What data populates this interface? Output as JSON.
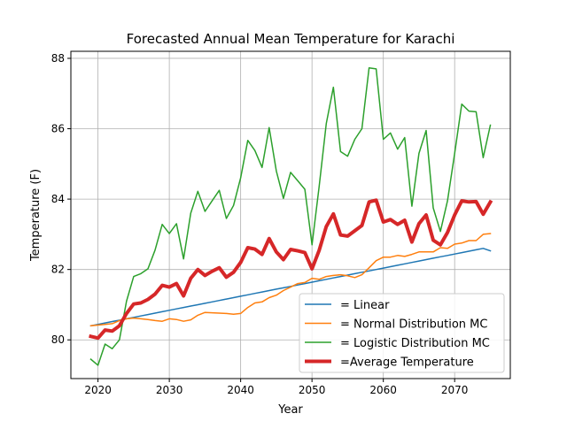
{
  "chart_data": {
    "type": "line",
    "title": "Forecasted Annual Mean Temperature for Karachi",
    "xlabel": "Year",
    "ylabel": "Temperature (F)",
    "xlim": [
      2016.2,
      2077.8
    ],
    "ylim": [
      78.9,
      88.2
    ],
    "xticks": [
      2020,
      2030,
      2040,
      2050,
      2060,
      2070
    ],
    "yticks": [
      80,
      82,
      84,
      86,
      88
    ],
    "grid": true,
    "legend_position": "lower-right",
    "x": [
      2019,
      2020,
      2021,
      2022,
      2023,
      2024,
      2025,
      2026,
      2027,
      2028,
      2029,
      2030,
      2031,
      2032,
      2033,
      2034,
      2035,
      2036,
      2037,
      2038,
      2039,
      2040,
      2041,
      2042,
      2043,
      2044,
      2045,
      2046,
      2047,
      2048,
      2049,
      2050,
      2051,
      2052,
      2053,
      2054,
      2055,
      2056,
      2057,
      2058,
      2059,
      2060,
      2061,
      2062,
      2063,
      2064,
      2065,
      2066,
      2067,
      2068,
      2069,
      2070,
      2071,
      2072,
      2073,
      2074,
      2075
    ],
    "series": [
      {
        "name": "= Linear",
        "color": "#1f77b4",
        "linewidth": 1.5,
        "values": [
          80.4,
          80.44,
          80.48,
          80.52,
          80.56,
          80.6,
          80.64,
          80.68,
          80.72,
          80.76,
          80.8,
          80.84,
          80.88,
          80.92,
          80.96,
          81.0,
          81.04,
          81.08,
          81.12,
          81.16,
          81.2,
          81.24,
          81.28,
          81.32,
          81.36,
          81.4,
          81.44,
          81.48,
          81.52,
          81.56,
          81.6,
          81.64,
          81.68,
          81.72,
          81.76,
          81.8,
          81.84,
          81.88,
          81.92,
          81.96,
          82.0,
          82.04,
          82.08,
          82.12,
          82.16,
          82.2,
          82.24,
          82.28,
          82.32,
          82.36,
          82.4,
          82.44,
          82.48,
          82.52,
          82.56,
          82.6,
          82.53
        ]
      },
      {
        "name": "= Normal Distribution MC",
        "color": "#ff7f0e",
        "linewidth": 1.5,
        "values": [
          80.4,
          80.42,
          80.44,
          80.46,
          80.55,
          80.6,
          80.62,
          80.6,
          80.58,
          80.55,
          80.53,
          80.6,
          80.58,
          80.53,
          80.57,
          80.7,
          80.78,
          80.77,
          80.76,
          80.75,
          80.73,
          80.75,
          80.92,
          81.05,
          81.08,
          81.2,
          81.27,
          81.4,
          81.5,
          81.6,
          81.63,
          81.75,
          81.72,
          81.8,
          81.83,
          81.85,
          81.82,
          81.77,
          81.85,
          82.05,
          82.25,
          82.35,
          82.35,
          82.4,
          82.37,
          82.43,
          82.5,
          82.5,
          82.5,
          82.62,
          82.6,
          82.72,
          82.75,
          82.82,
          82.82,
          83.0,
          83.02
        ]
      },
      {
        "name": "= Logistic Distribution MC",
        "color": "#2ca02c",
        "linewidth": 1.5,
        "values": [
          79.45,
          79.28,
          79.88,
          79.75,
          80.0,
          81.1,
          81.8,
          81.88,
          82.02,
          82.55,
          83.28,
          83.02,
          83.3,
          82.3,
          83.6,
          84.22,
          83.65,
          83.95,
          84.25,
          83.45,
          83.82,
          84.6,
          85.67,
          85.38,
          84.9,
          86.03,
          84.8,
          84.02,
          84.76,
          84.52,
          84.28,
          82.7,
          84.35,
          86.15,
          87.18,
          85.35,
          85.22,
          85.7,
          86.0,
          87.73,
          87.7,
          85.7,
          85.88,
          85.42,
          85.75,
          83.8,
          85.3,
          85.95,
          83.75,
          83.08,
          83.95,
          85.3,
          86.7,
          86.5,
          86.48,
          85.18,
          86.1
        ]
      },
      {
        "name": "=Average Temperature",
        "color": "#d62728",
        "linewidth": 4,
        "values": [
          80.1,
          80.05,
          80.28,
          80.25,
          80.4,
          80.75,
          81.02,
          81.05,
          81.15,
          81.3,
          81.55,
          81.5,
          81.6,
          81.25,
          81.75,
          82.0,
          81.83,
          81.95,
          82.05,
          81.78,
          81.92,
          82.2,
          82.62,
          82.58,
          82.43,
          82.88,
          82.5,
          82.28,
          82.57,
          82.53,
          82.48,
          82.02,
          82.54,
          83.22,
          83.58,
          82.98,
          82.95,
          83.1,
          83.25,
          83.92,
          83.97,
          83.35,
          83.42,
          83.28,
          83.4,
          82.78,
          83.3,
          83.55,
          82.83,
          82.7,
          83.05,
          83.55,
          83.95,
          83.92,
          83.93,
          83.57,
          83.92
        ]
      }
    ]
  }
}
